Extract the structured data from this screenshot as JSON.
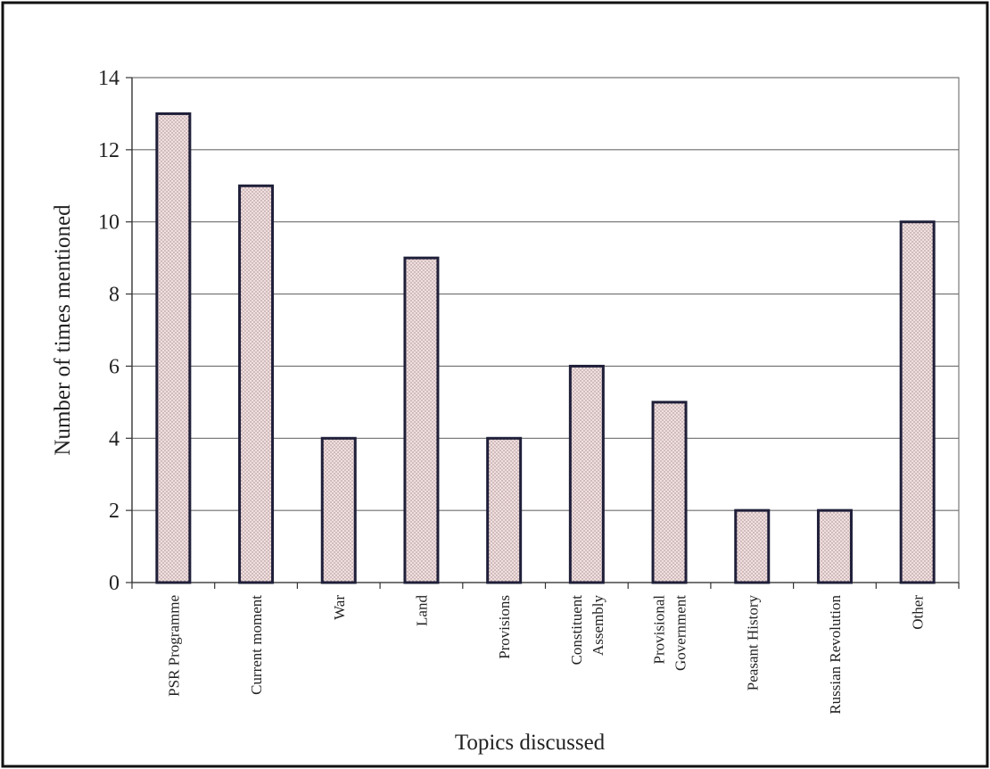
{
  "chart_data": {
    "type": "bar",
    "xlabel": "Topics discussed",
    "ylabel": "Number of times mentioned",
    "categories": [
      [
        "PSR Programme"
      ],
      [
        "Current moment"
      ],
      [
        "War"
      ],
      [
        "Land"
      ],
      [
        "Provisions"
      ],
      [
        "Constituent",
        "Assembly"
      ],
      [
        "Provisional",
        "Government"
      ],
      [
        "Peasant History"
      ],
      [
        "Russian Revolution"
      ],
      [
        "Other"
      ]
    ],
    "values": [
      13,
      11,
      4,
      9,
      4,
      6,
      5,
      2,
      2,
      10
    ],
    "ylim": [
      0,
      14
    ],
    "yticks": [
      0,
      2,
      4,
      6,
      8,
      10,
      12,
      14
    ],
    "grid": true,
    "legend": "none",
    "colors": {
      "bar_fill": "#f2dede",
      "bar_dots": "#9a8a8a",
      "bar_edge": "#1f1f3a",
      "grid": "#6e6e6e"
    }
  }
}
